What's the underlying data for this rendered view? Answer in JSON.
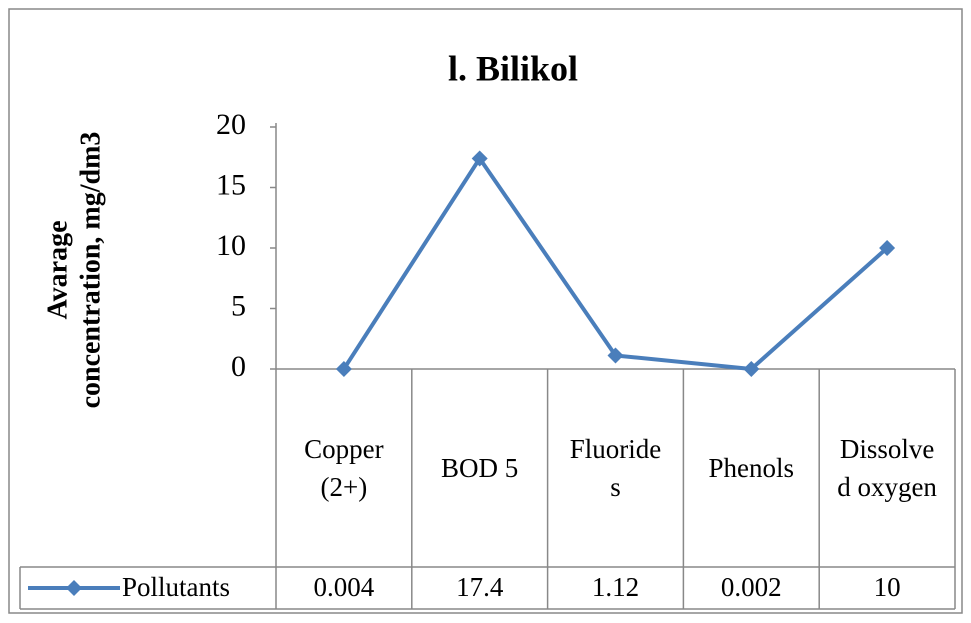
{
  "chart_data": {
    "type": "line",
    "title": "l. Bilikol",
    "y_label": [
      "Avarage",
      "concentration,  mg/dm3"
    ],
    "categories": [
      "Copper (2+)",
      "BOD 5",
      "Fluorides",
      "Phenols",
      "Dissolved oxygen"
    ],
    "series": [
      {
        "name": "Pollutants",
        "color": "#4a7ebb",
        "values": [
          0.004,
          17.4,
          1.12,
          0.002,
          10
        ]
      }
    ],
    "ylim": [
      0,
      20
    ],
    "yticks": [
      0,
      5,
      10,
      15,
      20
    ],
    "grid": false,
    "data_table": true
  }
}
